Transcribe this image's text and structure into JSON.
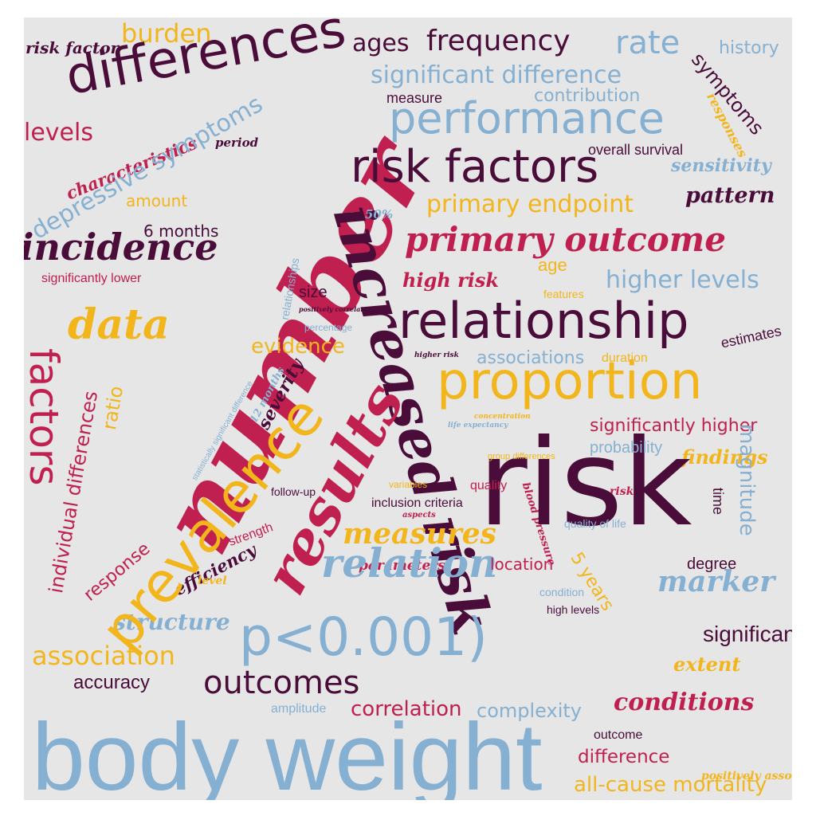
{
  "palette": {
    "crimson": "#c0204f",
    "plum": "#4a0d3a",
    "blue": "#86b0d1",
    "gold": "#f2b51c",
    "background": "#e6e6e6"
  },
  "words": [
    "risk factor",
    "burden",
    "differences",
    "ages",
    "frequency",
    "rate",
    "history",
    "symptoms",
    "significant difference",
    "measure",
    "contribution",
    "responses",
    "depressive symptoms",
    "characteristics",
    "period",
    "levels",
    "performance",
    "number",
    "risk factors",
    "overall survival",
    "sensitivity",
    "amount",
    "increased risk",
    "pattern",
    "6 months",
    "50%",
    "primary endpoint",
    "incidence",
    "primary outcome",
    "significantly lower",
    "relationships",
    "high risk",
    "age",
    "higher levels",
    "size",
    "positively correlated",
    "features",
    "data",
    "relationship",
    "percentage",
    "factors",
    "evidence",
    "estimates",
    "higher risk",
    "associations",
    "duration",
    "ratio",
    "statistically significant difference",
    "severity",
    "individual differences",
    "12 months",
    "proportion",
    "concentration",
    "life expectancy",
    "significantly higher",
    "prevalence",
    "results",
    "findings",
    "probability",
    "group differences",
    "magnitude",
    "follow-up",
    "blood pressure",
    "risks",
    "variables",
    "aspects",
    "quality",
    "inclusion criteria",
    "risk",
    "response",
    "measures",
    "efficiency",
    "time",
    "parameters",
    "location",
    "relation",
    "strength",
    "level",
    "5 years",
    "marker",
    "quality of life",
    "degree",
    "structure",
    "p<0.001)",
    "condition",
    "association",
    "extent",
    "high levels",
    "outcomes",
    "conditions",
    "significant differences",
    "correlation",
    "complexity",
    "accuracy",
    "amplitude",
    "difference",
    "all-cause mortality",
    "positively associated",
    "outcome",
    "body weight"
  ]
}
